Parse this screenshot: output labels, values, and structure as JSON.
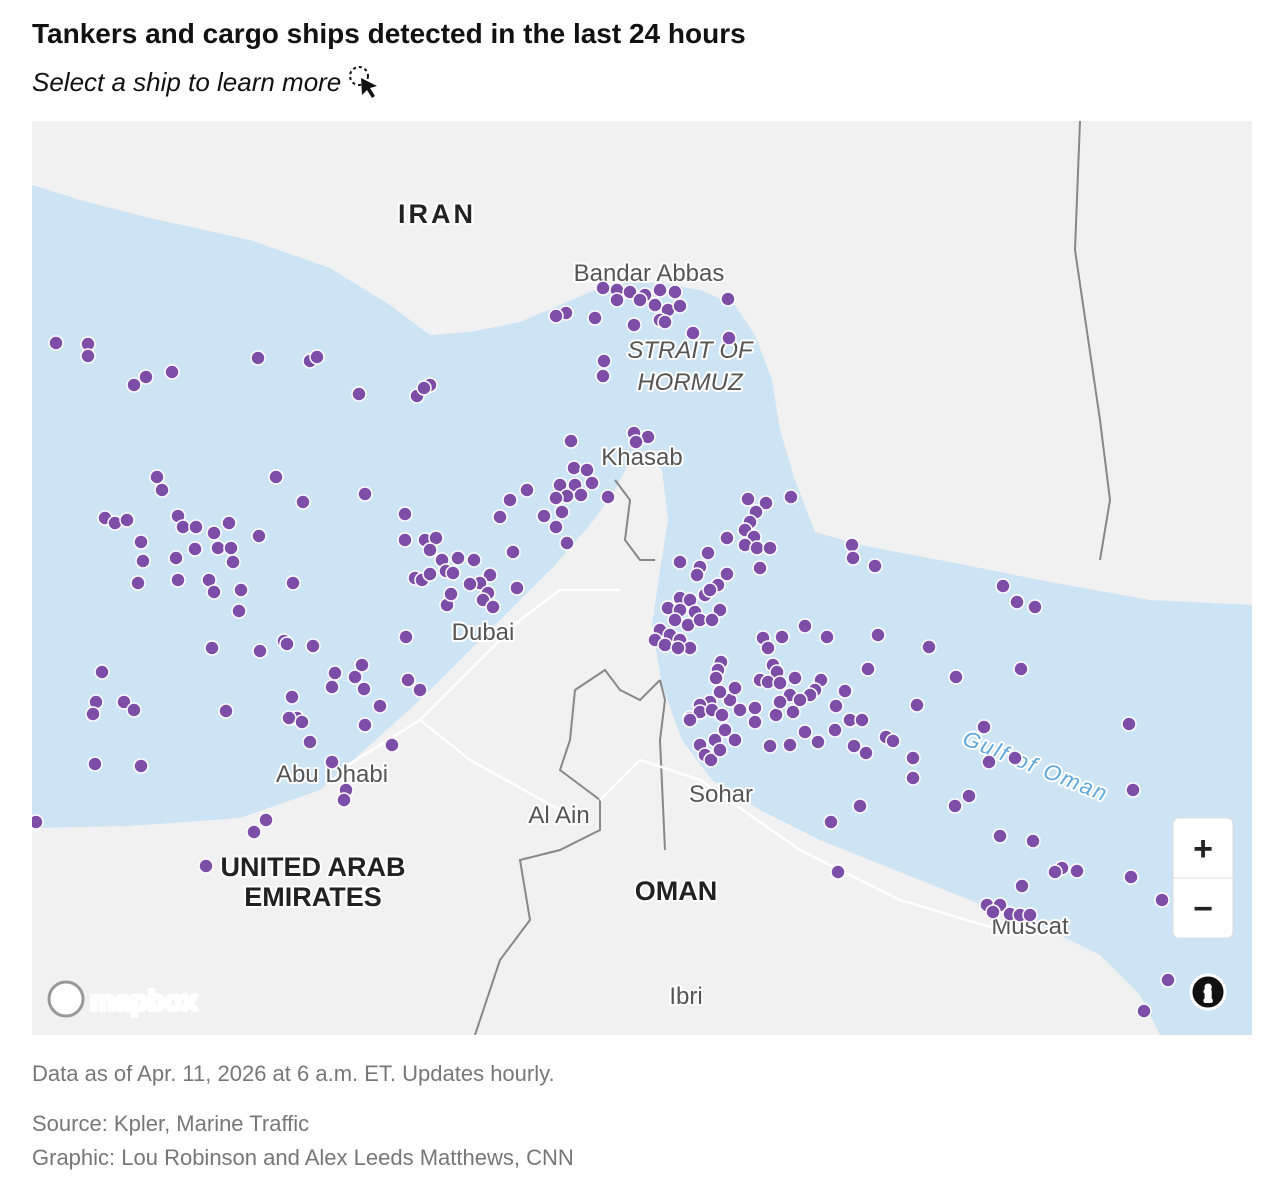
{
  "header": {
    "title": "Tankers and cargo ships detected in the last 24 hours",
    "subtitle": "Select a ship to learn more"
  },
  "map": {
    "labels": {
      "iran": "IRAN",
      "bandar_abbas": "Bandar Abbas",
      "strait": [
        "STRAIT OF",
        "HORMUZ"
      ],
      "khasab": "Khasab",
      "dubai": "Dubai",
      "abu_dhabi": "Abu Dhabi",
      "uae": [
        "UNITED ARAB",
        "EMIRATES"
      ],
      "al_ain": "Al Ain",
      "sohar": "Sohar",
      "oman": "OMAN",
      "muscat": "Muscat",
      "ibri": "Ibri",
      "gulf_of_oman": "Gulf of Oman"
    },
    "attribution": "mapbox",
    "zoom_in": "+",
    "zoom_out": "−",
    "info": "i"
  },
  "footer": {
    "data_note": "Data as of Apr. 11, 2026 at 6 a.m. ET. Updates hourly.",
    "source": "Source: Kpler, Marine Traffic",
    "credit": "Graphic: Lou Robinson and Alex Leeds Matthews, CNN"
  }
}
